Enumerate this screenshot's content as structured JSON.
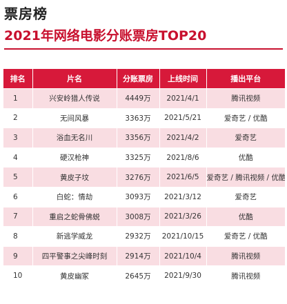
{
  "header": {
    "section_label": "票房榜",
    "title": "2021年网络电影分账票房TOP20"
  },
  "table": {
    "columns": [
      "排名",
      "片名",
      "分账票房",
      "上线时间",
      "播出平台"
    ],
    "rows": [
      {
        "rank": "1",
        "film": "兴安岭猎人传说",
        "box_office": "4449万",
        "release": "2021/4/1",
        "platform": "腾讯视频"
      },
      {
        "rank": "2",
        "film": "无间风暴",
        "box_office": "3363万",
        "release": "2021/5/21",
        "platform": "爱奇艺 / 优酷"
      },
      {
        "rank": "3",
        "film": "浴血无名川",
        "box_office": "3356万",
        "release": "2021/4/2",
        "platform": "爱奇艺"
      },
      {
        "rank": "4",
        "film": "硬汉枪神",
        "box_office": "3325万",
        "release": "2021/8/6",
        "platform": "优酷"
      },
      {
        "rank": "5",
        "film": "黄皮子坟",
        "box_office": "3276万",
        "release": "2021/6/5",
        "platform": "爱奇艺 / 腾讯视频 / 优酷"
      },
      {
        "rank": "6",
        "film": "白蛇：情劫",
        "box_office": "3093万",
        "release": "2021/3/12",
        "platform": "爱奇艺"
      },
      {
        "rank": "7",
        "film": "重启之蛇骨佛蜕",
        "box_office": "3008万",
        "release": "2021/3/26",
        "platform": "优酷"
      },
      {
        "rank": "8",
        "film": "新逃学威龙",
        "box_office": "2932万",
        "release": "2021/10/15",
        "platform": "爱奇艺 / 优酷"
      },
      {
        "rank": "9",
        "film": "四平警事之尖峰时刻",
        "box_office": "2914万",
        "release": "2021/10/4",
        "platform": "腾讯视频"
      },
      {
        "rank": "10",
        "film": "黄皮幽冢",
        "box_office": "2645万",
        "release": "2021/9/30",
        "platform": "腾讯视频"
      }
    ]
  },
  "colors": {
    "accent": "#c8102e",
    "header_bg": "#d7193a",
    "row_stripe": "#f9dde2"
  }
}
